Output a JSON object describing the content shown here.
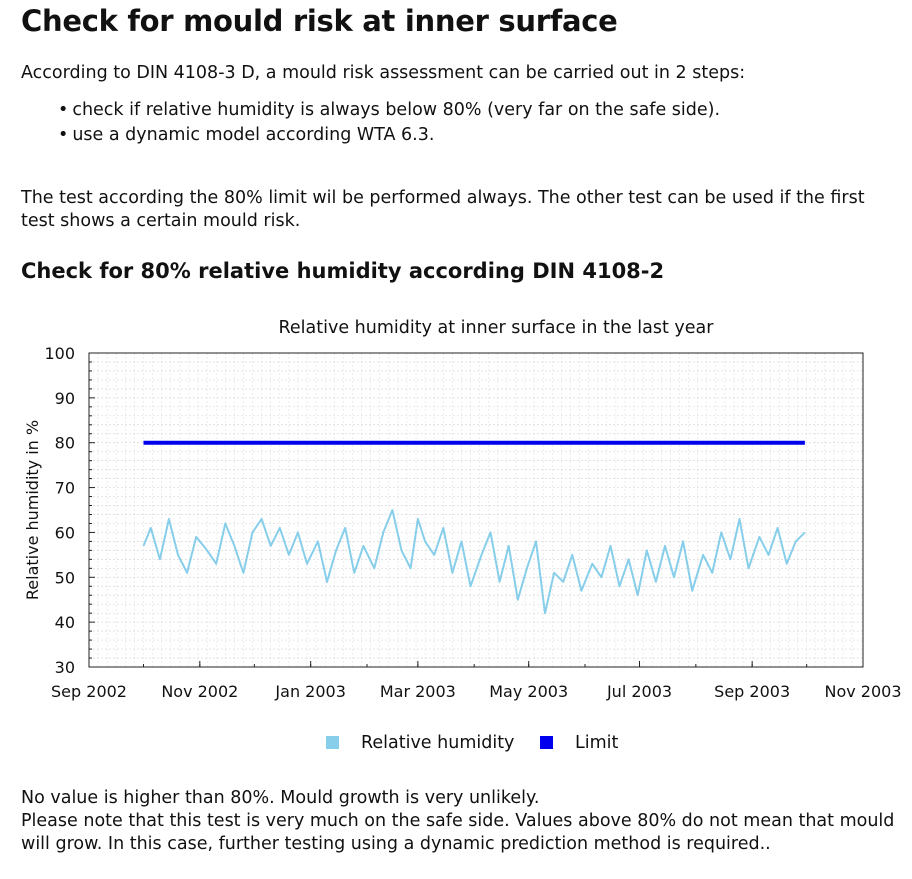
{
  "title": "Check for mould risk at inner surface",
  "intro": "According to DIN 4108-3 D, a mould risk assessment can be carried out in 2 steps:",
  "bullets": [
    "check if relative humidity is always below 80% (very far on the safe side).",
    "use a dynamic model according WTA 6.3."
  ],
  "paragraph": "The test according the 80% limit wil be performed always. The other test can be used if the first test shows a certain mould risk.",
  "section_title": "Check for 80% relative humidity according DIN 4108-2",
  "footer": {
    "line1": "No value is higher than 80%. Mould growth is very unlikely.",
    "line2": "Please note that this test is very much on the safe side. Values above 80% do not mean that mould will grow. In this case, further testing using a dynamic prediction method is required.."
  },
  "chart_data": {
    "type": "line",
    "title": "Relative humidity at inner surface in the last year",
    "ylabel": "Relative humidity in %",
    "xlabel": "",
    "ylim": [
      30,
      100
    ],
    "yticks": [
      30,
      40,
      50,
      60,
      70,
      80,
      90,
      100
    ],
    "xlim": [
      "2002-09-01",
      "2003-11-01"
    ],
    "xticks": [
      {
        "date": "2002-09-01",
        "label": "Sep 2002"
      },
      {
        "date": "2002-11-01",
        "label": "Nov 2002"
      },
      {
        "date": "2003-01-01",
        "label": "Jan 2003"
      },
      {
        "date": "2003-03-01",
        "label": "Mar 2003"
      },
      {
        "date": "2003-05-01",
        "label": "May 2003"
      },
      {
        "date": "2003-07-01",
        "label": "Jul 2003"
      },
      {
        "date": "2003-09-01",
        "label": "Sep 2003"
      },
      {
        "date": "2003-11-01",
        "label": "Nov 2003"
      }
    ],
    "grid": true,
    "legend_position": "bottom",
    "series": [
      {
        "name": "Relative humidity",
        "color": "#87ceeb",
        "x": [
          "2002-10-01",
          "2002-10-05",
          "2002-10-10",
          "2002-10-15",
          "2002-10-20",
          "2002-10-25",
          "2002-10-30",
          "2002-11-05",
          "2002-11-10",
          "2002-11-15",
          "2002-11-20",
          "2002-11-25",
          "2002-11-30",
          "2002-12-05",
          "2002-12-10",
          "2002-12-15",
          "2002-12-20",
          "2002-12-25",
          "2002-12-30",
          "2003-01-05",
          "2003-01-10",
          "2003-01-15",
          "2003-01-20",
          "2003-01-25",
          "2003-01-30",
          "2003-02-05",
          "2003-02-10",
          "2003-02-15",
          "2003-02-20",
          "2003-02-25",
          "2003-03-01",
          "2003-03-05",
          "2003-03-10",
          "2003-03-15",
          "2003-03-20",
          "2003-03-25",
          "2003-03-30",
          "2003-04-05",
          "2003-04-10",
          "2003-04-15",
          "2003-04-20",
          "2003-04-25",
          "2003-04-30",
          "2003-05-05",
          "2003-05-10",
          "2003-05-15",
          "2003-05-20",
          "2003-05-25",
          "2003-05-30",
          "2003-06-05",
          "2003-06-10",
          "2003-06-15",
          "2003-06-20",
          "2003-06-25",
          "2003-06-30",
          "2003-07-05",
          "2003-07-10",
          "2003-07-15",
          "2003-07-20",
          "2003-07-25",
          "2003-07-30",
          "2003-08-05",
          "2003-08-10",
          "2003-08-15",
          "2003-08-20",
          "2003-08-25",
          "2003-08-30",
          "2003-09-05",
          "2003-09-10",
          "2003-09-15",
          "2003-09-20",
          "2003-09-25",
          "2003-09-30"
        ],
        "values": [
          57,
          61,
          54,
          63,
          55,
          51,
          59,
          56,
          53,
          62,
          57,
          51,
          60,
          63,
          57,
          61,
          55,
          60,
          53,
          58,
          49,
          56,
          61,
          51,
          57,
          52,
          60,
          65,
          56,
          52,
          63,
          58,
          55,
          61,
          51,
          58,
          48,
          55,
          60,
          49,
          57,
          45,
          52,
          58,
          42,
          51,
          49,
          55,
          47,
          53,
          50,
          57,
          48,
          54,
          46,
          56,
          49,
          57,
          50,
          58,
          47,
          55,
          51,
          60,
          54,
          63,
          52,
          59,
          55,
          61,
          53,
          58,
          60
        ]
      },
      {
        "name": "Limit",
        "color": "#0000ee",
        "x": [
          "2002-10-01",
          "2003-09-30"
        ],
        "values": [
          80,
          80
        ]
      }
    ]
  }
}
